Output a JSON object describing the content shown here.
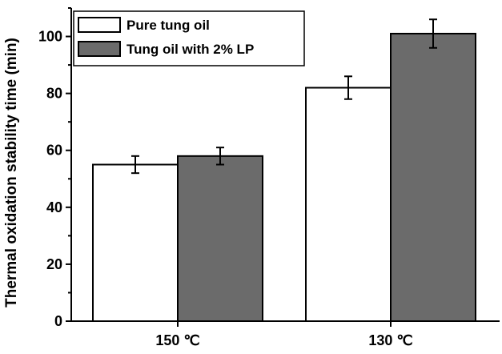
{
  "chart_data": {
    "type": "bar",
    "categories": [
      "150 ℃",
      "130 ℃"
    ],
    "series": [
      {
        "name": "Pure tung oil",
        "values": [
          55,
          82
        ],
        "errors": [
          3,
          4
        ],
        "color": "#ffffff"
      },
      {
        "name": "Tung oil with 2% LP",
        "values": [
          58,
          101
        ],
        "errors": [
          3,
          5
        ],
        "color": "#6b6b6b"
      }
    ],
    "xlabel": "",
    "ylabel": "Thermal oxidation stability time (min)",
    "ylim": [
      0,
      110
    ],
    "yticks": [
      0,
      20,
      40,
      60,
      80,
      100
    ],
    "grid": false,
    "legend_position": "top-left"
  }
}
